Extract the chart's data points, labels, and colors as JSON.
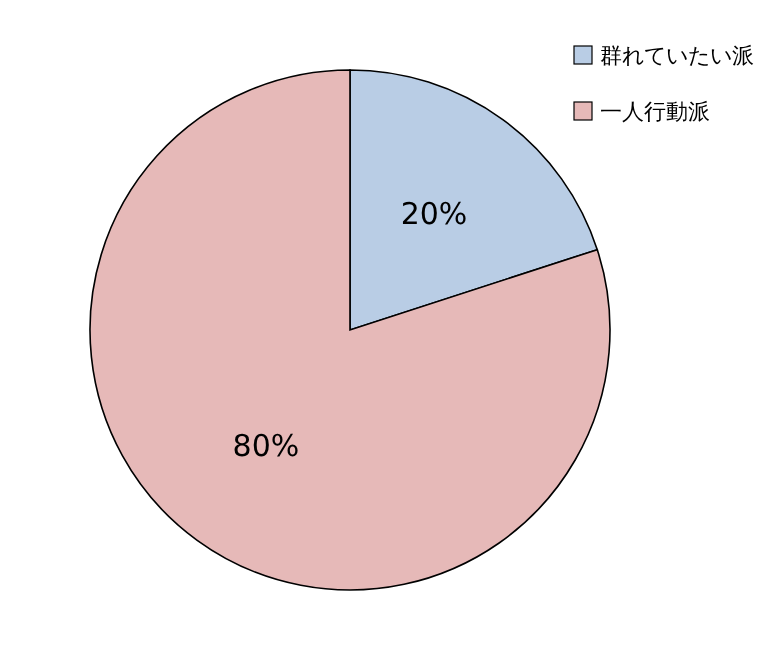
{
  "chart_data": {
    "type": "pie",
    "categories": [
      "群れていたい派",
      "一人行動派"
    ],
    "values": [
      20,
      80
    ],
    "colors": [
      "#b9cde5",
      "#e6b9b8"
    ],
    "value_labels": [
      "20%",
      "80%"
    ],
    "legend": "top right"
  }
}
